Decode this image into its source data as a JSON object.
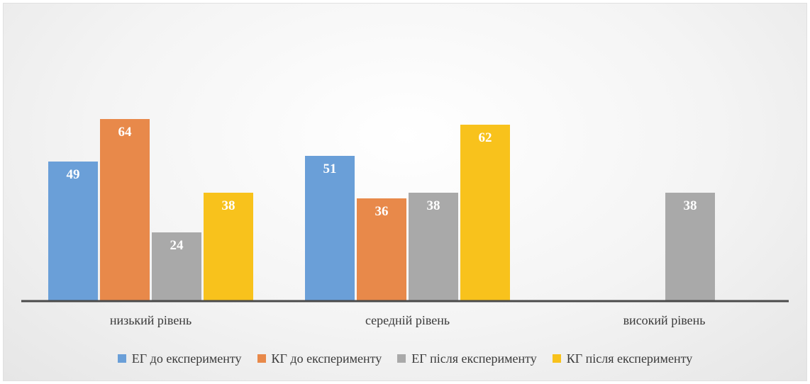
{
  "chart_data": {
    "type": "bar",
    "categories": [
      "низький рівень",
      "середній рівень",
      "високий рівень"
    ],
    "series": [
      {
        "name": "ЕГ до експерименту",
        "color": "#6a9fd8",
        "values": [
          49,
          51,
          0
        ]
      },
      {
        "name": "КГ до експерименту",
        "color": "#e8894a",
        "values": [
          64,
          36,
          0
        ]
      },
      {
        "name": "ЕГ після експерименту",
        "color": "#a9a9a9",
        "values": [
          24,
          38,
          38
        ]
      },
      {
        "name": "КГ після експерименту",
        "color": "#f8c21c",
        "values": [
          38,
          62,
          0
        ]
      }
    ],
    "title": "",
    "xlabel": "",
    "ylabel": "",
    "ylim": [
      0,
      70
    ],
    "grid": false,
    "data_labels": true,
    "legend_position": "bottom"
  }
}
